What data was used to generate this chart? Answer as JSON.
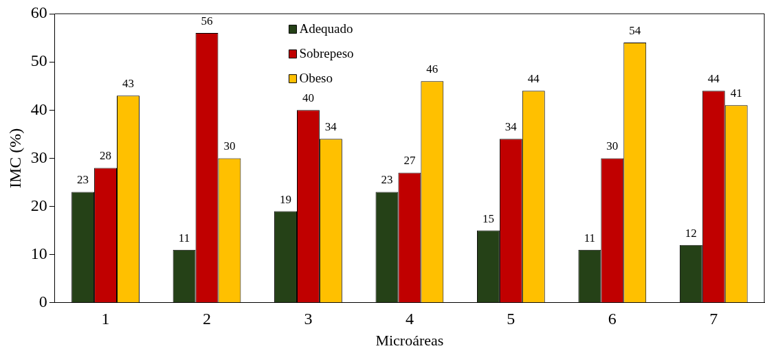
{
  "chart_data": {
    "type": "bar",
    "xlabel": "Microáreas",
    "ylabel": "IMC (%)",
    "categories": [
      "1",
      "2",
      "3",
      "4",
      "5",
      "6",
      "7"
    ],
    "series": [
      {
        "name": "Adequado",
        "color": "#254117",
        "values": [
          23,
          11,
          19,
          23,
          15,
          11,
          12
        ]
      },
      {
        "name": "Sobrepeso",
        "color": "#c00000",
        "values": [
          28,
          56,
          40,
          27,
          34,
          30,
          44
        ]
      },
      {
        "name": "Obeso",
        "color": "#ffc000",
        "values": [
          43,
          30,
          34,
          46,
          44,
          54,
          41
        ]
      }
    ],
    "ylim": [
      0,
      60
    ],
    "yticks": [
      0,
      10,
      20,
      30,
      40,
      50,
      60
    ],
    "grid": false,
    "legend": "top",
    "data_labels": true
  }
}
